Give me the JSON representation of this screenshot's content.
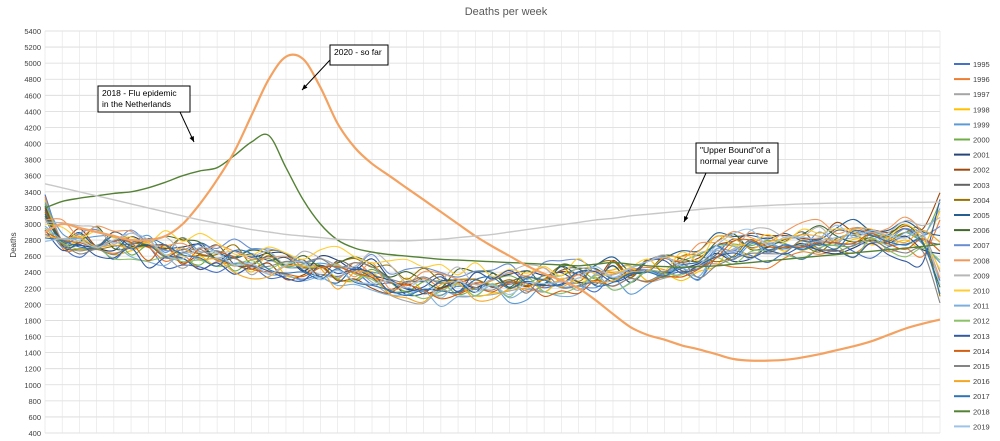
{
  "chart_data": {
    "type": "line",
    "title": "Deaths per week",
    "xlabel": "",
    "ylabel": "Deaths",
    "ylim": [
      400,
      5400
    ],
    "ytick_step": 200,
    "x_range": [
      1,
      53
    ],
    "grid": true,
    "legend_position": "right",
    "y_ticks": [
      "400",
      "600",
      "800",
      "1000",
      "1200",
      "1400",
      "1600",
      "1800",
      "2000",
      "2200",
      "2400",
      "2600",
      "2800",
      "3000",
      "3200",
      "3400",
      "3600",
      "3800",
      "4000",
      "4200",
      "4400",
      "4600",
      "4800",
      "5000",
      "5200",
      "5400"
    ],
    "series": [
      {
        "name": "1995",
        "color": "#4472c4"
      },
      {
        "name": "1996",
        "color": "#ed7d31"
      },
      {
        "name": "1997",
        "color": "#a5a5a5"
      },
      {
        "name": "1998",
        "color": "#ffc000"
      },
      {
        "name": "1999",
        "color": "#5b9bd5"
      },
      {
        "name": "2000",
        "color": "#70ad47"
      },
      {
        "name": "2001",
        "color": "#264478"
      },
      {
        "name": "2002",
        "color": "#9e480e"
      },
      {
        "name": "2003",
        "color": "#636363"
      },
      {
        "name": "2004",
        "color": "#997300"
      },
      {
        "name": "2005",
        "color": "#255e91"
      },
      {
        "name": "2006",
        "color": "#43682b"
      },
      {
        "name": "2007",
        "color": "#698ed0"
      },
      {
        "name": "2008",
        "color": "#f1975a"
      },
      {
        "name": "2009",
        "color": "#b7b7b7"
      },
      {
        "name": "2010",
        "color": "#ffcd33"
      },
      {
        "name": "2011",
        "color": "#7cafdd"
      },
      {
        "name": "2012",
        "color": "#8cc168"
      },
      {
        "name": "2013",
        "color": "#335aa1"
      },
      {
        "name": "2014",
        "color": "#d26012"
      },
      {
        "name": "2015",
        "color": "#848484"
      },
      {
        "name": "2016",
        "color": "#f5a623"
      },
      {
        "name": "2017",
        "color": "#2e75b6"
      },
      {
        "name": "2018",
        "color": "#548235",
        "values": [
          3200,
          3280,
          3320,
          3350,
          3380,
          3400,
          3450,
          3520,
          3600,
          3660,
          3700,
          3850,
          4020,
          4100,
          3700,
          3300,
          3000,
          2800,
          2700,
          2650,
          2620,
          2600,
          2580,
          2560,
          2550,
          2540,
          2530,
          2520,
          2510,
          2500,
          2490,
          2480,
          2500,
          2520,
          2500,
          2480,
          2470,
          2460,
          2470,
          2480,
          2500,
          2520,
          2540,
          2560,
          2580,
          2600,
          2620,
          2640,
          2660,
          2680,
          2700,
          2720,
          2750
        ]
      },
      {
        "name": "2019",
        "color": "#9dc3e6"
      },
      {
        "name": "2020 - so far",
        "color": "#f4a261",
        "values": [
          2900,
          3000,
          2950,
          2900,
          2850,
          2800,
          2800,
          2850,
          3000,
          3250,
          3550,
          3900,
          4350,
          4800,
          5080,
          5050,
          4700,
          4250,
          3950,
          3750,
          3600,
          3450,
          3300,
          3150,
          3000,
          2850,
          2720,
          2600,
          2480,
          2380,
          2300,
          2200,
          2050,
          1880,
          1720,
          1620,
          1560,
          1490,
          1440,
          1380,
          1320,
          1300,
          1300,
          1310,
          1340,
          1380,
          1430,
          1480,
          1540,
          1620,
          1700,
          1760,
          1810
        ]
      },
      {
        "name": "",
        "color": "#c8c8c8",
        "values": [
          3500,
          3450,
          3400,
          3350,
          3300,
          3250,
          3200,
          3150,
          3100,
          3050,
          3010,
          2970,
          2930,
          2900,
          2870,
          2850,
          2830,
          2810,
          2800,
          2790,
          2790,
          2790,
          2800,
          2810,
          2830,
          2850,
          2870,
          2900,
          2930,
          2960,
          2990,
          3020,
          3050,
          3070,
          3100,
          3120,
          3140,
          3160,
          3180,
          3200,
          3210,
          3220,
          3230,
          3240,
          3250,
          3255,
          3260,
          3262,
          3264,
          3266,
          3268,
          3270,
          3272
        ]
      }
    ],
    "annotations": [
      {
        "text_lines": [
          "2018 - Flu epidemic",
          "in the Netherlands"
        ]
      },
      {
        "text_lines": [
          "2020 - so far"
        ]
      },
      {
        "text_lines": [
          "\"Upper Bound\"of a",
          "normal year curve"
        ]
      }
    ]
  }
}
